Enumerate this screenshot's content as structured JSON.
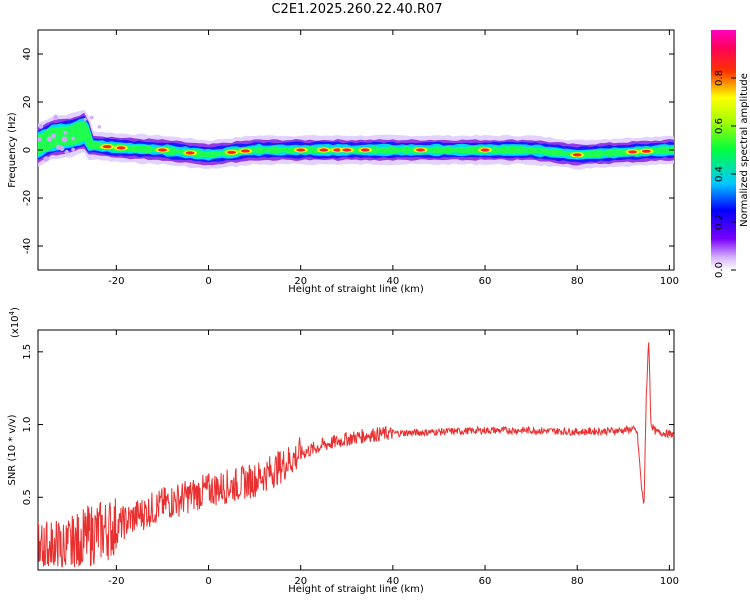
{
  "title": "C2E1.2025.260.22.40.R07",
  "chart_data": [
    {
      "type": "heatmap",
      "xlabel": "Height of straight line (km)",
      "ylabel": "Frequency (Hz)",
      "xlim": [
        -37,
        101
      ],
      "ylim": [
        -50,
        50
      ],
      "x_ticks": [
        -20,
        0,
        20,
        40,
        60,
        80,
        100
      ],
      "y_ticks": [
        -40,
        -20,
        0,
        20,
        40
      ],
      "colorbar": {
        "label": "Normalized spectral amplitude",
        "range": [
          0.0,
          1.0
        ],
        "ticks": [
          0.0,
          0.2,
          0.4,
          0.6,
          0.8
        ],
        "colormap": "rainbow (white-violet-blue-cyan-green-yellow-red-magenta)"
      },
      "ridge": {
        "description": "Narrow band of high amplitude centered near 0 Hz along all heights, broader and positive (0-10 Hz) between -37 and -25 km",
        "center_freq": [
          [
            -37,
            2
          ],
          [
            -34,
            5
          ],
          [
            -30,
            6
          ],
          [
            -27,
            8
          ],
          [
            -25,
            2
          ],
          [
            -20,
            1
          ],
          [
            -10,
            0
          ],
          [
            0,
            -2
          ],
          [
            10,
            0
          ],
          [
            20,
            0
          ],
          [
            30,
            0
          ],
          [
            40,
            0
          ],
          [
            50,
            0
          ],
          [
            60,
            0
          ],
          [
            70,
            0
          ],
          [
            80,
            -2
          ],
          [
            90,
            -1
          ],
          [
            100,
            0
          ]
        ],
        "hotspots_x": [
          -22,
          -19,
          -10,
          -4,
          5,
          8,
          20,
          25,
          28,
          30,
          34,
          46,
          60,
          80,
          92,
          95
        ]
      }
    },
    {
      "type": "line",
      "xlabel": "Height of straight line (km)",
      "ylabel": "SNR (10 * v/v)",
      "y_multiplier": "(x10^4)",
      "xlim": [
        -37,
        101
      ],
      "ylim": [
        0,
        1.65
      ],
      "x_ticks": [
        -20,
        0,
        20,
        40,
        60,
        80,
        100
      ],
      "y_ticks": [
        0.5,
        1.0,
        1.5
      ],
      "color": "#ee3333",
      "series": [
        {
          "trend_points": [
            [
              -37,
              0.12
            ],
            [
              -30,
              0.15
            ],
            [
              -25,
              0.25
            ],
            [
              -20,
              0.3
            ],
            [
              -15,
              0.38
            ],
            [
              -10,
              0.45
            ],
            [
              -5,
              0.5
            ],
            [
              0,
              0.55
            ],
            [
              5,
              0.58
            ],
            [
              10,
              0.62
            ],
            [
              15,
              0.7
            ],
            [
              20,
              0.8
            ],
            [
              25,
              0.86
            ],
            [
              30,
              0.9
            ],
            [
              35,
              0.93
            ],
            [
              40,
              0.94
            ],
            [
              50,
              0.95
            ],
            [
              60,
              0.96
            ],
            [
              70,
              0.96
            ],
            [
              80,
              0.95
            ],
            [
              90,
              0.96
            ],
            [
              92,
              0.97
            ],
            [
              93,
              0.95
            ],
            [
              94,
              0.55
            ],
            [
              94.5,
              0.45
            ],
            [
              95,
              1.2
            ],
            [
              95.5,
              1.6
            ],
            [
              96,
              1.0
            ],
            [
              97,
              0.95
            ],
            [
              101,
              0.93
            ]
          ]
        }
      ]
    }
  ],
  "labels": {
    "top_xlabel": "Height of straight line (km)",
    "top_ylabel": "Frequency (Hz)",
    "bot_xlabel": "Height of straight line (km)",
    "bot_ylabel": "SNR (10 * v/v)",
    "bot_mult": "(x10",
    "bot_mult_exp": "4",
    "bot_mult_close": ")",
    "cbar_label": "Normalized spectral amplitude"
  }
}
